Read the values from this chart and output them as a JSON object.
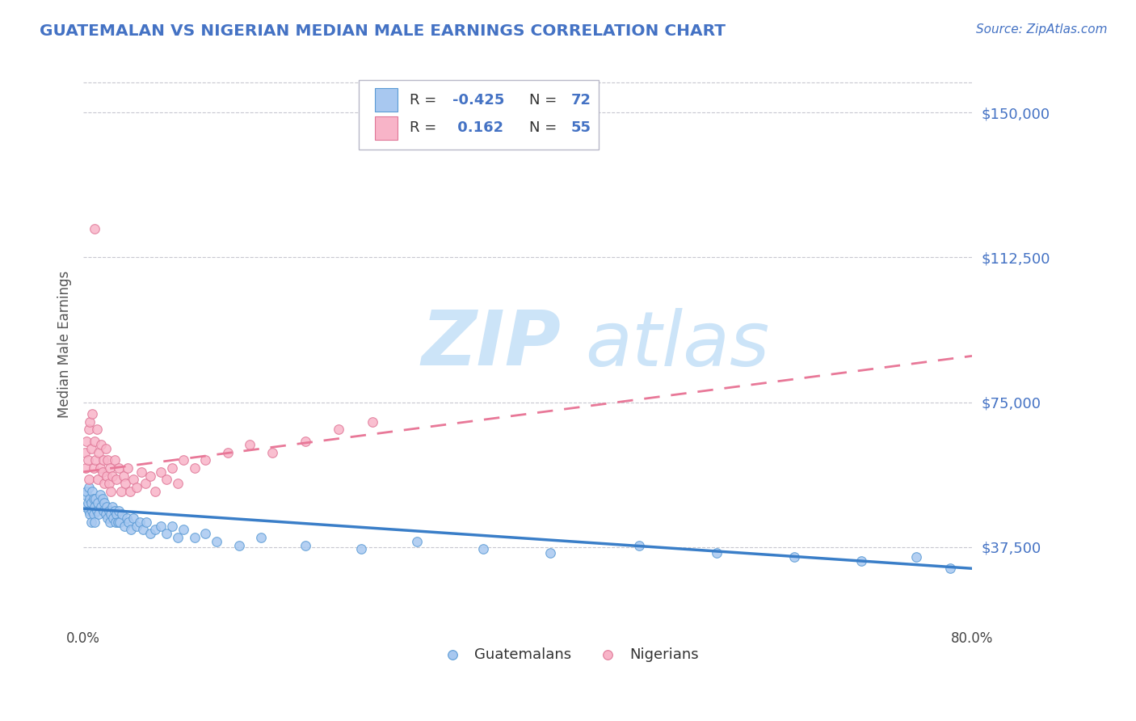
{
  "title": "GUATEMALAN VS NIGERIAN MEDIAN MALE EARNINGS CORRELATION CHART",
  "source": "Source: ZipAtlas.com",
  "ylabel": "Median Male Earnings",
  "ytick_labels": [
    "$37,500",
    "$75,000",
    "$112,500",
    "$150,000"
  ],
  "ytick_values": [
    37500,
    75000,
    112500,
    150000
  ],
  "ymin": 18000,
  "ymax": 162000,
  "xmin": 0.0,
  "xmax": 0.8,
  "guatemalan_fill_color": "#a8c8f0",
  "guatemalan_edge_color": "#5b9bd5",
  "nigerian_fill_color": "#f8b4c8",
  "nigerian_edge_color": "#e07898",
  "guatemalan_trend_color": "#3a7ec8",
  "nigerian_trend_color": "#e87898",
  "title_color": "#4472c4",
  "source_color": "#4472c4",
  "ytick_color": "#4472c4",
  "label_color": "#4472c4",
  "guatemalans_label": "Guatemalans",
  "nigerians_label": "Nigerians",
  "watermark_text": "ZIPatlas",
  "watermark_color": "#cce4f8",
  "grid_color": "#c8c8d0",
  "legend_r_guatemalan": "-0.425",
  "legend_n_guatemalan": "72",
  "legend_r_nigerian": " 0.162",
  "legend_n_nigerian": "55",
  "guatemalan_scatter_x": [
    0.001,
    0.002,
    0.003,
    0.004,
    0.005,
    0.005,
    0.006,
    0.006,
    0.007,
    0.007,
    0.008,
    0.008,
    0.009,
    0.009,
    0.01,
    0.01,
    0.011,
    0.012,
    0.013,
    0.014,
    0.015,
    0.016,
    0.017,
    0.018,
    0.019,
    0.02,
    0.021,
    0.022,
    0.023,
    0.024,
    0.025,
    0.026,
    0.027,
    0.028,
    0.029,
    0.03,
    0.031,
    0.032,
    0.033,
    0.035,
    0.037,
    0.039,
    0.041,
    0.043,
    0.045,
    0.048,
    0.051,
    0.054,
    0.057,
    0.06,
    0.065,
    0.07,
    0.075,
    0.08,
    0.085,
    0.09,
    0.1,
    0.11,
    0.12,
    0.14,
    0.16,
    0.2,
    0.25,
    0.3,
    0.36,
    0.42,
    0.5,
    0.57,
    0.64,
    0.7,
    0.75,
    0.78
  ],
  "guatemalan_scatter_y": [
    51000,
    48000,
    52000,
    49000,
    53000,
    47000,
    50000,
    46000,
    49000,
    44000,
    52000,
    47000,
    50000,
    46000,
    48000,
    44000,
    50000,
    47000,
    49000,
    46000,
    51000,
    48000,
    50000,
    47000,
    49000,
    46000,
    48000,
    45000,
    47000,
    44000,
    46000,
    48000,
    45000,
    47000,
    44000,
    46000,
    44000,
    47000,
    44000,
    46000,
    43000,
    45000,
    44000,
    42000,
    45000,
    43000,
    44000,
    42000,
    44000,
    41000,
    42000,
    43000,
    41000,
    43000,
    40000,
    42000,
    40000,
    41000,
    39000,
    38000,
    40000,
    38000,
    37000,
    39000,
    37000,
    36000,
    38000,
    36000,
    35000,
    34000,
    35000,
    32000
  ],
  "nigerian_scatter_x": [
    0.001,
    0.002,
    0.003,
    0.004,
    0.005,
    0.005,
    0.006,
    0.007,
    0.008,
    0.009,
    0.01,
    0.011,
    0.012,
    0.013,
    0.014,
    0.015,
    0.016,
    0.017,
    0.018,
    0.019,
    0.02,
    0.021,
    0.022,
    0.023,
    0.024,
    0.025,
    0.026,
    0.028,
    0.03,
    0.032,
    0.034,
    0.036,
    0.038,
    0.04,
    0.042,
    0.045,
    0.048,
    0.052,
    0.056,
    0.06,
    0.065,
    0.07,
    0.075,
    0.08,
    0.085,
    0.09,
    0.1,
    0.11,
    0.13,
    0.15,
    0.17,
    0.2,
    0.23,
    0.26,
    0.01
  ],
  "nigerian_scatter_y": [
    62000,
    58000,
    65000,
    60000,
    68000,
    55000,
    70000,
    63000,
    72000,
    58000,
    65000,
    60000,
    68000,
    55000,
    62000,
    58000,
    64000,
    57000,
    60000,
    54000,
    63000,
    56000,
    60000,
    54000,
    58000,
    52000,
    56000,
    60000,
    55000,
    58000,
    52000,
    56000,
    54000,
    58000,
    52000,
    55000,
    53000,
    57000,
    54000,
    56000,
    52000,
    57000,
    55000,
    58000,
    54000,
    60000,
    58000,
    60000,
    62000,
    64000,
    62000,
    65000,
    68000,
    70000,
    120000
  ]
}
